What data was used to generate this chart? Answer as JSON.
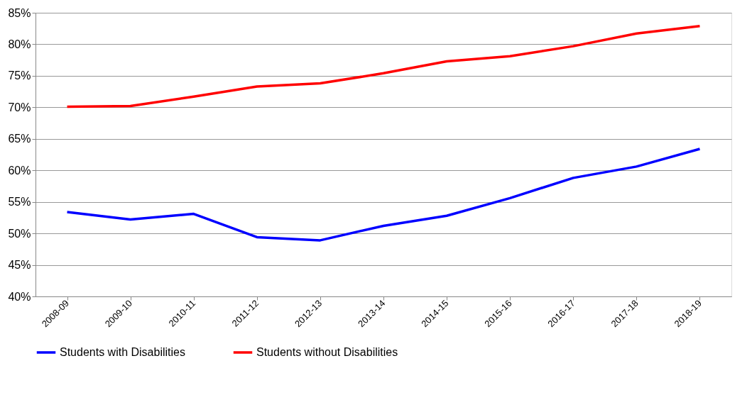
{
  "chart_data": {
    "type": "line",
    "categories": [
      "2008-09",
      "2009-10",
      "2010-11",
      "2011-12",
      "2012-13",
      "2013-14",
      "2014-15",
      "2015-16",
      "2016-17",
      "2017-18",
      "2018-19"
    ],
    "series": [
      {
        "name": "Students with Disabilities",
        "color": "#0000ff",
        "values": [
          53.4,
          52.2,
          53.1,
          49.4,
          48.9,
          51.2,
          52.8,
          55.6,
          58.8,
          60.6,
          63.4
        ]
      },
      {
        "name": "Students without Disabilities",
        "color": "#ff0000",
        "values": [
          70.1,
          70.2,
          71.7,
          73.3,
          73.8,
          75.4,
          77.3,
          78.1,
          79.7,
          81.7,
          82.9
        ]
      }
    ],
    "ylim": [
      40,
      85
    ],
    "yticks": [
      {
        "value": 40,
        "label": "40%"
      },
      {
        "value": 45,
        "label": "45%"
      },
      {
        "value": 50,
        "label": "50%"
      },
      {
        "value": 55,
        "label": "55%"
      },
      {
        "value": 60,
        "label": "60%"
      },
      {
        "value": 65,
        "label": "65%"
      },
      {
        "value": 70,
        "label": "70%"
      },
      {
        "value": 75,
        "label": "75%"
      },
      {
        "value": 80,
        "label": "80%"
      },
      {
        "value": 85,
        "label": "85%"
      }
    ],
    "grid": "y",
    "legend": "bottom",
    "marker": "none",
    "line_style": "solid"
  }
}
